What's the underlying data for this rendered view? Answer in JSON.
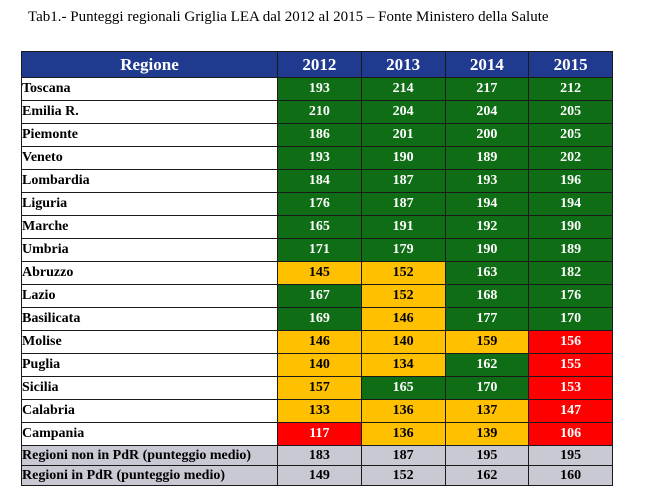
{
  "caption": "Tab1.- Punteggi regionali  Griglia LEA dal 2012 al 2015 – Fonte Ministero della Salute",
  "colors": {
    "header_blue": "#1f3a8f",
    "green": "#0f6d15",
    "yellow": "#ffc000",
    "red": "#ff0000",
    "summary_grey": "#c9c9d4"
  },
  "table": {
    "headers": [
      "Regione",
      "2012",
      "2013",
      "2014",
      "2015"
    ],
    "rows": [
      {
        "region": "Toscana",
        "values": [
          "193",
          "214",
          "217",
          "212"
        ],
        "status": [
          "green",
          "green",
          "green",
          "green"
        ]
      },
      {
        "region": "Emilia R.",
        "values": [
          "210",
          "204",
          "204",
          "205"
        ],
        "status": [
          "green",
          "green",
          "green",
          "green"
        ]
      },
      {
        "region": "Piemonte",
        "values": [
          "186",
          "201",
          "200",
          "205"
        ],
        "status": [
          "green",
          "green",
          "green",
          "green"
        ]
      },
      {
        "region": "Veneto",
        "values": [
          "193",
          "190",
          "189",
          "202"
        ],
        "status": [
          "green",
          "green",
          "green",
          "green"
        ]
      },
      {
        "region": "Lombardia",
        "values": [
          "184",
          "187",
          "193",
          "196"
        ],
        "status": [
          "green",
          "green",
          "green",
          "green"
        ]
      },
      {
        "region": "Liguria",
        "values": [
          "176",
          "187",
          "194",
          "194"
        ],
        "status": [
          "green",
          "green",
          "green",
          "green"
        ]
      },
      {
        "region": "Marche",
        "values": [
          "165",
          "191",
          "192",
          "190"
        ],
        "status": [
          "green",
          "green",
          "green",
          "green"
        ]
      },
      {
        "region": "Umbria",
        "values": [
          "171",
          "179",
          "190",
          "189"
        ],
        "status": [
          "green",
          "green",
          "green",
          "green"
        ]
      },
      {
        "region": "Abruzzo",
        "values": [
          "145",
          "152",
          "163",
          "182"
        ],
        "status": [
          "yellow",
          "yellow",
          "green",
          "green"
        ]
      },
      {
        "region": "Lazio",
        "values": [
          "167",
          "152",
          "168",
          "176"
        ],
        "status": [
          "green",
          "yellow",
          "green",
          "green"
        ]
      },
      {
        "region": "Basilicata",
        "values": [
          "169",
          "146",
          "177",
          "170"
        ],
        "status": [
          "green",
          "yellow",
          "green",
          "green"
        ]
      },
      {
        "region": "Molise",
        "values": [
          "146",
          "140",
          "159",
          "156"
        ],
        "status": [
          "yellow",
          "yellow",
          "yellow",
          "red"
        ]
      },
      {
        "region": "Puglia",
        "values": [
          "140",
          "134",
          "162",
          "155"
        ],
        "status": [
          "yellow",
          "yellow",
          "green",
          "red"
        ]
      },
      {
        "region": "Sicilia",
        "values": [
          "157",
          "165",
          "170",
          "153"
        ],
        "status": [
          "yellow",
          "green",
          "green",
          "red"
        ]
      },
      {
        "region": "Calabria",
        "values": [
          "133",
          "136",
          "137",
          "147"
        ],
        "status": [
          "yellow",
          "yellow",
          "yellow",
          "red"
        ]
      },
      {
        "region": "Campania",
        "values": [
          "117",
          "136",
          "139",
          "106"
        ],
        "status": [
          "red",
          "yellow",
          "yellow",
          "red"
        ]
      }
    ],
    "summary": [
      {
        "label": "Regioni non in PdR (punteggio medio)",
        "values": [
          "183",
          "187",
          "195",
          "195"
        ]
      },
      {
        "label": "Regioni in PdR (punteggio medio)",
        "values": [
          "149",
          "152",
          "162",
          "160"
        ]
      }
    ]
  }
}
